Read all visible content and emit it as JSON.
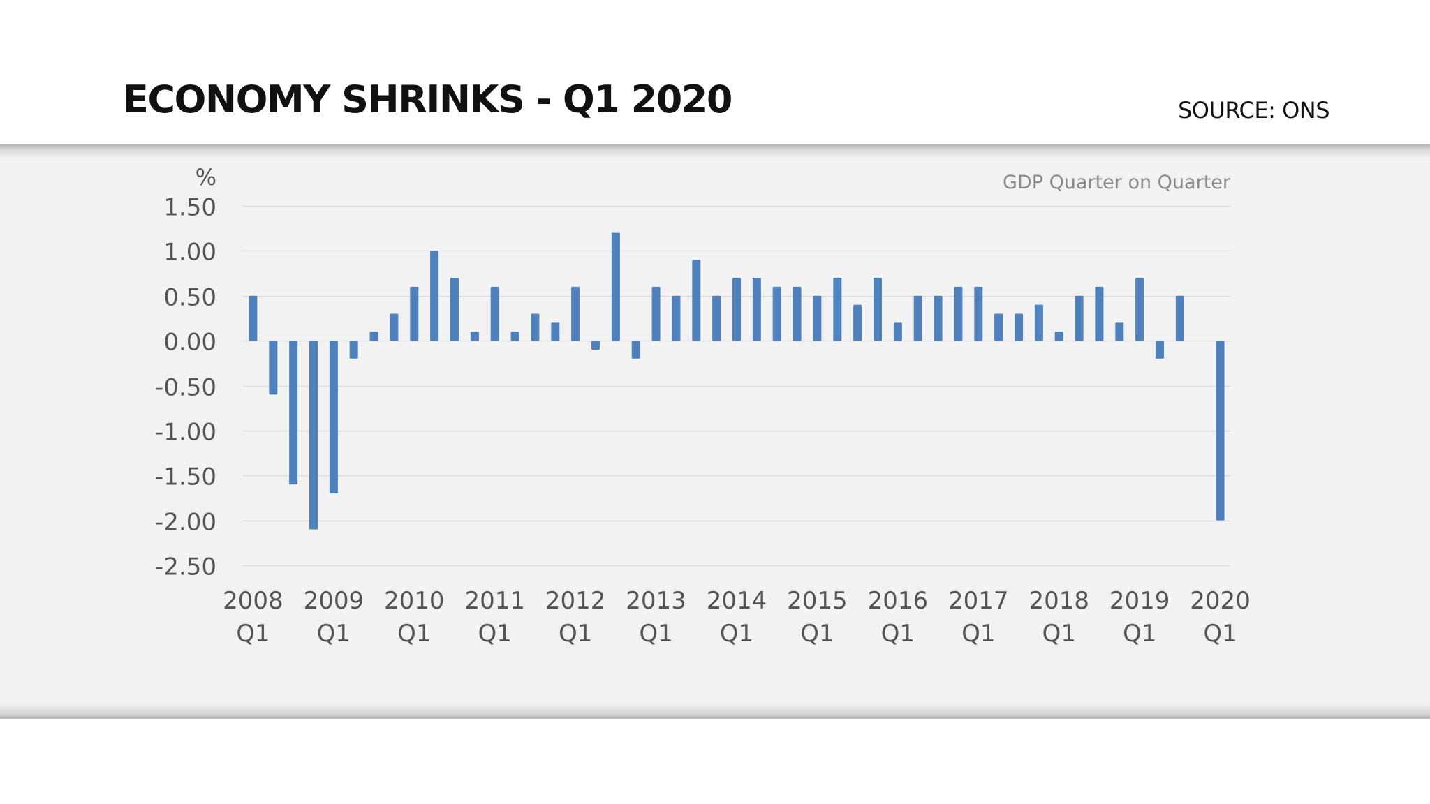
{
  "header": {
    "title": "ECONOMY SHRINKS - Q1 2020",
    "source": "SOURCE: ONS"
  },
  "colors": {
    "bar": "#4f81bd",
    "panel_background": "#f2f2f2",
    "gridline": "#dcdcdc",
    "axis_text": "#555555",
    "subtitle_text": "#8a8a8a",
    "title_text": "#111111"
  },
  "chart_data": {
    "type": "bar",
    "title": "ECONOMY SHRINKS - Q1 2020",
    "subtitle": "GDP Quarter on Quarter",
    "source": "SOURCE: ONS",
    "xlabel": "",
    "ylabel": "%",
    "ylim": [
      -2.5,
      1.5
    ],
    "yticks": [
      1.5,
      1.0,
      0.5,
      0.0,
      -0.5,
      -1.0,
      -1.5,
      -2.0,
      -2.5
    ],
    "ytick_labels": [
      "1.50",
      "1.00",
      "0.50",
      "0.00",
      "-0.50",
      "-1.00",
      "-1.50",
      "-2.00",
      "-2.50"
    ],
    "grid": true,
    "legend": "none",
    "x_tick_labels": [
      {
        "year": "2008",
        "quarter": "Q1",
        "index": 0
      },
      {
        "year": "2009",
        "quarter": "Q1",
        "index": 4
      },
      {
        "year": "2010",
        "quarter": "Q1",
        "index": 8
      },
      {
        "year": "2011",
        "quarter": "Q1",
        "index": 12
      },
      {
        "year": "2012",
        "quarter": "Q1",
        "index": 16
      },
      {
        "year": "2013",
        "quarter": "Q1",
        "index": 20
      },
      {
        "year": "2014",
        "quarter": "Q1",
        "index": 24
      },
      {
        "year": "2015",
        "quarter": "Q1",
        "index": 28
      },
      {
        "year": "2016",
        "quarter": "Q1",
        "index": 32
      },
      {
        "year": "2017",
        "quarter": "Q1",
        "index": 36
      },
      {
        "year": "2018",
        "quarter": "Q1",
        "index": 40
      },
      {
        "year": "2019",
        "quarter": "Q1",
        "index": 44
      },
      {
        "year": "2020",
        "quarter": "Q1",
        "index": 48
      }
    ],
    "categories": [
      "2008 Q1",
      "2008 Q2",
      "2008 Q3",
      "2008 Q4",
      "2009 Q1",
      "2009 Q2",
      "2009 Q3",
      "2009 Q4",
      "2010 Q1",
      "2010 Q2",
      "2010 Q3",
      "2010 Q4",
      "2011 Q1",
      "2011 Q2",
      "2011 Q3",
      "2011 Q4",
      "2012 Q1",
      "2012 Q2",
      "2012 Q3",
      "2012 Q4",
      "2013 Q1",
      "2013 Q2",
      "2013 Q3",
      "2013 Q4",
      "2014 Q1",
      "2014 Q2",
      "2014 Q3",
      "2014 Q4",
      "2015 Q1",
      "2015 Q2",
      "2015 Q3",
      "2015 Q4",
      "2016 Q1",
      "2016 Q2",
      "2016 Q3",
      "2016 Q4",
      "2017 Q1",
      "2017 Q2",
      "2017 Q3",
      "2017 Q4",
      "2018 Q1",
      "2018 Q2",
      "2018 Q3",
      "2018 Q4",
      "2019 Q1",
      "2019 Q2",
      "2019 Q3",
      "2019 Q4",
      "2020 Q1"
    ],
    "values": [
      0.5,
      -0.6,
      -1.6,
      -2.1,
      -1.7,
      -0.2,
      0.1,
      0.3,
      0.6,
      1.0,
      0.7,
      0.1,
      0.6,
      0.1,
      0.3,
      0.2,
      0.6,
      -0.1,
      1.2,
      -0.2,
      0.6,
      0.5,
      0.9,
      0.5,
      0.7,
      0.7,
      0.6,
      0.6,
      0.5,
      0.7,
      0.4,
      0.7,
      0.2,
      0.5,
      0.5,
      0.6,
      0.6,
      0.3,
      0.3,
      0.4,
      0.1,
      0.5,
      0.6,
      0.2,
      0.7,
      -0.2,
      0.5,
      0.0,
      -2.0
    ]
  }
}
